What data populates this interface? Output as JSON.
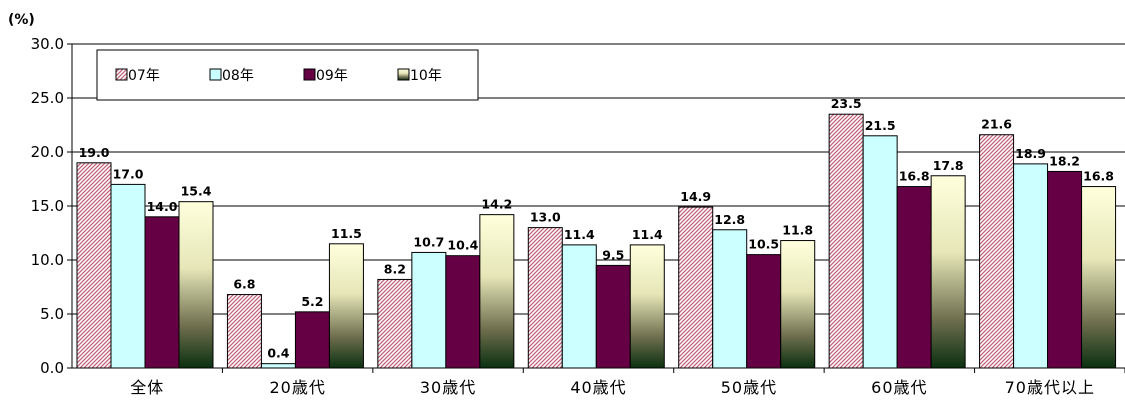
{
  "chart_data": {
    "type": "bar",
    "unit_label": "(%)",
    "categories": [
      "全体",
      "20歳代",
      "30歳代",
      "40歳代",
      "50歳代",
      "60歳代",
      "70歳代以上"
    ],
    "series": [
      {
        "name": "07年",
        "values": [
          19.0,
          6.8,
          8.2,
          13.0,
          14.9,
          23.5,
          21.6
        ]
      },
      {
        "name": "08年",
        "values": [
          17.0,
          0.4,
          10.7,
          11.4,
          12.8,
          21.5,
          18.9
        ]
      },
      {
        "name": "09年",
        "values": [
          14.0,
          5.2,
          10.4,
          9.5,
          10.5,
          16.8,
          18.2
        ]
      },
      {
        "name": "10年",
        "values": [
          15.4,
          11.5,
          14.2,
          11.4,
          11.8,
          17.8,
          16.8
        ]
      }
    ],
    "ylim": [
      0,
      30
    ],
    "yticks": [
      "0.0",
      "5.0",
      "10.0",
      "15.0",
      "20.0",
      "25.0",
      "30.0"
    ],
    "grid": true,
    "legend_position": "top-left",
    "colors": {
      "07年": "#c0607a",
      "08年": "#ccffff",
      "09年": "#660044",
      "10年": "#ffffcc"
    }
  }
}
